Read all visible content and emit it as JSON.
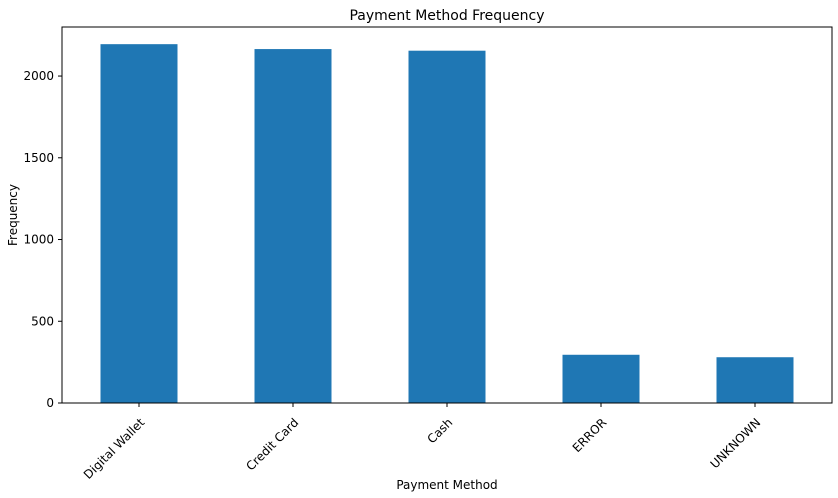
{
  "chart_data": {
    "type": "bar",
    "title": "Payment Method Frequency",
    "xlabel": "Payment Method",
    "ylabel": "Frequency",
    "categories": [
      "Digital Wallet",
      "Credit Card",
      "Cash",
      "ERROR",
      "UNKNOWN"
    ],
    "values": [
      2195,
      2165,
      2155,
      295,
      280
    ],
    "ylim": [
      0,
      2300
    ],
    "yticks": [
      0,
      500,
      1000,
      1500,
      2000
    ],
    "grid": false,
    "bar_color": "#1f77b4"
  }
}
